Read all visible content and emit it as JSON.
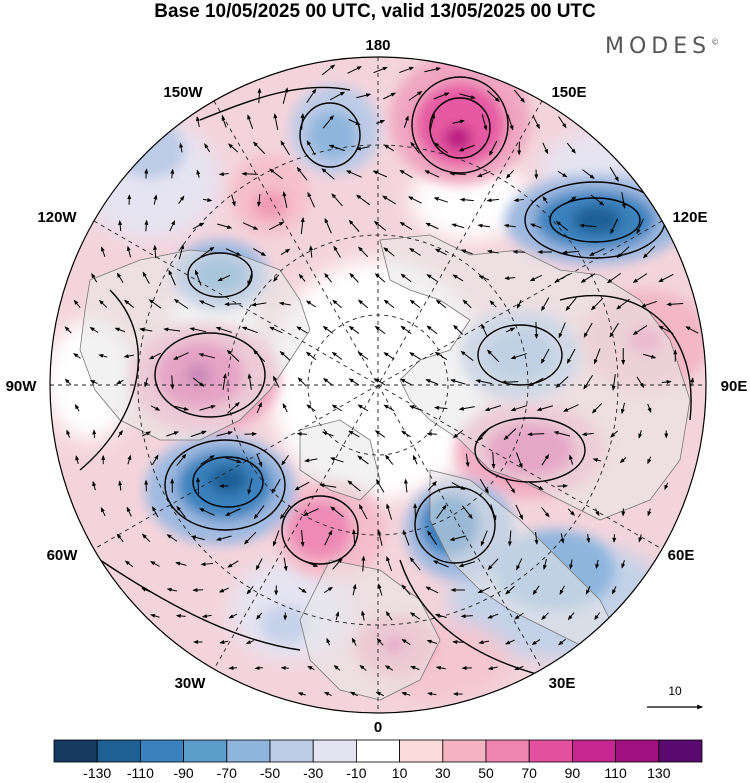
{
  "title": "Base 10/05/2025 00 UTC, valid 13/05/2025 00 UTC",
  "brand": "MODES",
  "brand_mark": "©",
  "longitude_labels": {
    "top": "180",
    "bottom": "0",
    "left": "90W",
    "right": "90E",
    "upper_left_1": "150W",
    "upper_left_2": "120W",
    "upper_right_1": "150E",
    "upper_right_2": "120E",
    "lower_left_1": "60W",
    "lower_left_2": "30W",
    "lower_right_1": "60E",
    "lower_right_2": "30E"
  },
  "vector_scale_label": "10",
  "colorbar": {
    "colors": [
      "#163a5f",
      "#1e5f94",
      "#3a82be",
      "#5d9dcc",
      "#8fb5dd",
      "#bccbe6",
      "#e4e3f1",
      "#ffffff",
      "#fbdada",
      "#f4b3c0",
      "#ef85b1",
      "#e3509e",
      "#c72592",
      "#a0107f",
      "#5a0a6d"
    ],
    "labels": [
      "-130",
      "-110",
      "-90",
      "-70",
      "-50",
      "-30",
      "-10",
      "10",
      "30",
      "50",
      "70",
      "90",
      "110",
      "130"
    ]
  },
  "map_colors": {
    "land": "#e7e7e7",
    "neutral": "#ffffff",
    "coast": "#777777"
  }
}
